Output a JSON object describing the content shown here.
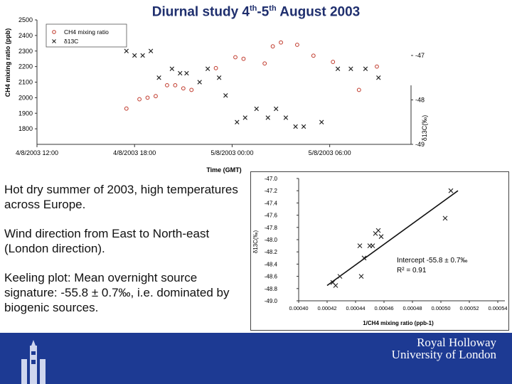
{
  "slide": {
    "title_prefix": "Diurnal study 4",
    "title_sup1": "th",
    "title_mid": "-5",
    "title_sup2": "th",
    "title_suffix": " August 2003",
    "paragraphs": [
      "Hot dry summer of 2003, high temperatures across Europe.",
      "Wind direction from East to North-east (London direction).",
      "Keeling plot: Mean overnight source signature: -55.8 ± 0.7‰, i.e. dominated by biogenic sources."
    ],
    "brand_line1": "Royal Holloway",
    "brand_line2": "University of London",
    "colors": {
      "footer": "#1d3a93",
      "title": "#1f2f6e",
      "ch4_marker": "#c0392b"
    }
  },
  "chart_data": [
    {
      "type": "scatter",
      "title": "",
      "xlabel": "Time (GMT)",
      "ylabel": "CH4 mixing ratio (ppb)",
      "y2label": "δ13C(‰)",
      "x_ticks": [
        "4/8/2003 12:00",
        "4/8/2003 18:00",
        "5/8/2003 00:00",
        "5/8/2003 06:00"
      ],
      "x_tick_hours": [
        0,
        6,
        12,
        18
      ],
      "xlim_hours": [
        0,
        23
      ],
      "y_ticks": [
        1800,
        1900,
        2000,
        2100,
        2200,
        2300,
        2400,
        2500
      ],
      "ylim": [
        1700,
        2500
      ],
      "y2_ticks": [
        -47,
        -48,
        -49
      ],
      "y2lim": [
        -49,
        -46.2
      ],
      "legend": {
        "position": "top-left",
        "entries": [
          "CH4 mixing ratio",
          "δ13C"
        ]
      },
      "series": [
        {
          "name": "CH4 mixing ratio",
          "axis": "left",
          "x_hours": [
            5.5,
            6.3,
            6.8,
            7.3,
            8.0,
            8.5,
            9.0,
            9.5,
            11.0,
            12.2,
            12.7,
            14.0,
            14.5,
            15.0,
            16.0,
            17.0,
            18.2,
            19.8,
            20.9
          ],
          "values": [
            1930,
            1990,
            2000,
            2010,
            2080,
            2080,
            2060,
            2050,
            2190,
            2260,
            2250,
            2220,
            2330,
            2355,
            2340,
            2270,
            2230,
            2050,
            2200
          ]
        },
        {
          "name": "δ13C",
          "axis": "right",
          "x_hours": [
            5.5,
            6.0,
            6.5,
            7.0,
            7.5,
            8.3,
            8.8,
            9.2,
            10.0,
            10.5,
            11.2,
            11.6,
            12.3,
            12.8,
            13.5,
            14.2,
            14.7,
            15.3,
            15.9,
            16.4,
            17.5,
            18.5,
            19.3,
            20.2,
            21.0
          ],
          "values": [
            -46.9,
            -47.0,
            -47.0,
            -46.9,
            -47.5,
            -47.3,
            -47.4,
            -47.4,
            -47.6,
            -47.3,
            -47.5,
            -47.9,
            -48.5,
            -48.4,
            -48.2,
            -48.4,
            -48.2,
            -48.4,
            -48.6,
            -48.6,
            -48.5,
            -47.3,
            -47.3,
            -47.3,
            -47.5
          ]
        }
      ]
    },
    {
      "type": "scatter",
      "title": "",
      "xlabel": "1/CH4 mixing ratio (ppb-1)",
      "ylabel": "δ13C(‰)",
      "xlim": [
        0.0004,
        0.000545
      ],
      "x_ticks": [
        "0.00040",
        "0.00042",
        "0.00044",
        "0.00046",
        "0.00048",
        "0.00050",
        "0.00052",
        "0.00054"
      ],
      "x_tick_values": [
        0.0004,
        0.00042,
        0.00044,
        0.00046,
        0.00048,
        0.0005,
        0.00052,
        0.00054
      ],
      "ylim": [
        -49.0,
        -47.0
      ],
      "y_ticks": [
        "-47.0",
        "-47.2",
        "-47.4",
        "-47.6",
        "-47.8",
        "-48.0",
        "-48.2",
        "-48.4",
        "-48.6",
        "-48.8",
        "-49.0"
      ],
      "y_tick_values": [
        -47.0,
        -47.2,
        -47.4,
        -47.6,
        -47.8,
        -48.0,
        -48.2,
        -48.4,
        -48.6,
        -48.8,
        -49.0
      ],
      "annotation_intercept": "Intercept -55.8 ± 0.7‰",
      "annotation_r2": "R² = 0.91",
      "series": [
        {
          "name": "",
          "x": [
            0.000424,
            0.000426,
            0.000429,
            0.000443,
            0.000444,
            0.000446,
            0.00045,
            0.000452,
            0.000454,
            0.000456,
            0.000458,
            0.000503,
            0.000507
          ],
          "values": [
            -48.7,
            -48.75,
            -48.6,
            -48.1,
            -48.6,
            -48.3,
            -48.1,
            -48.1,
            -47.9,
            -47.85,
            -47.95,
            -47.65,
            -47.2
          ]
        }
      ],
      "fit_line": {
        "x": [
          0.00042,
          0.000512
        ],
        "values": [
          -48.75,
          -47.2
        ]
      }
    }
  ]
}
